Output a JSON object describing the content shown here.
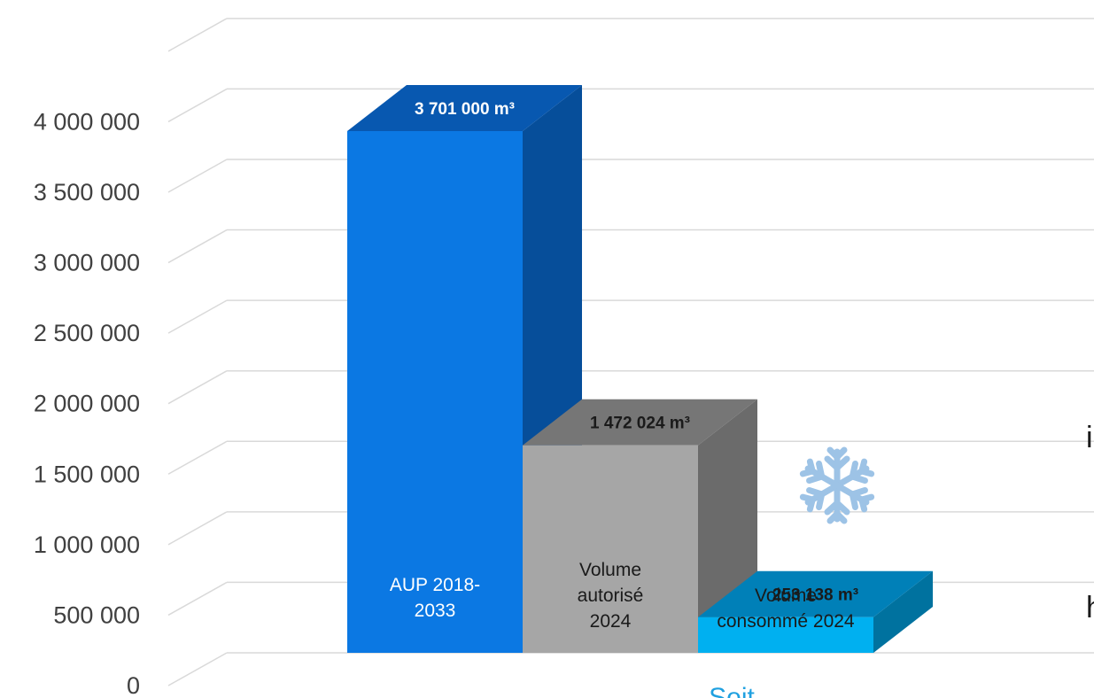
{
  "chart_data": {
    "type": "bar",
    "categories": [
      "AUP 2018-2033",
      "Volume autorisé 2024",
      "Volume consommé 2024"
    ],
    "values": [
      3701000,
      1472024,
      253138
    ],
    "value_labels": [
      "3 701 000 m³",
      "1 472 024 m³",
      "253 138 m³"
    ],
    "bar_label_lines": [
      [
        "AUP 2018-",
        "2033"
      ],
      [
        "Volume",
        "autorisé",
        "2024"
      ],
      [
        "Volume",
        "consommé 2024"
      ]
    ],
    "yticks": [
      "0",
      "500 000",
      "1 000 000",
      "1 500 000",
      "2 000 000",
      "2 500 000",
      "3 000 000",
      "3 500 000",
      "4 000 000"
    ],
    "ylim": [
      0,
      4500000
    ],
    "grid": true,
    "style": "3d",
    "title": "",
    "xlabel": "",
    "ylabel": "",
    "colors": {
      "bar1": "#0b78e3",
      "bar1_top": "#0858b0",
      "bar1_side": "#064e9a",
      "bar2": "#a6a6a6",
      "bar2_top": "#767676",
      "bar2_side": "#6b6b6b",
      "bar3": "#00b0f0",
      "bar3_top": "#0080b8",
      "bar3_side": "#00729f",
      "grid": "#d9d9d9",
      "snowflake": "#9dc3e6"
    },
    "annotations": {
      "snowflake_icon": "snowflake-icon"
    }
  },
  "clipped_text": {
    "footer": "Soit",
    "right_1": "i",
    "right_2": "h"
  }
}
